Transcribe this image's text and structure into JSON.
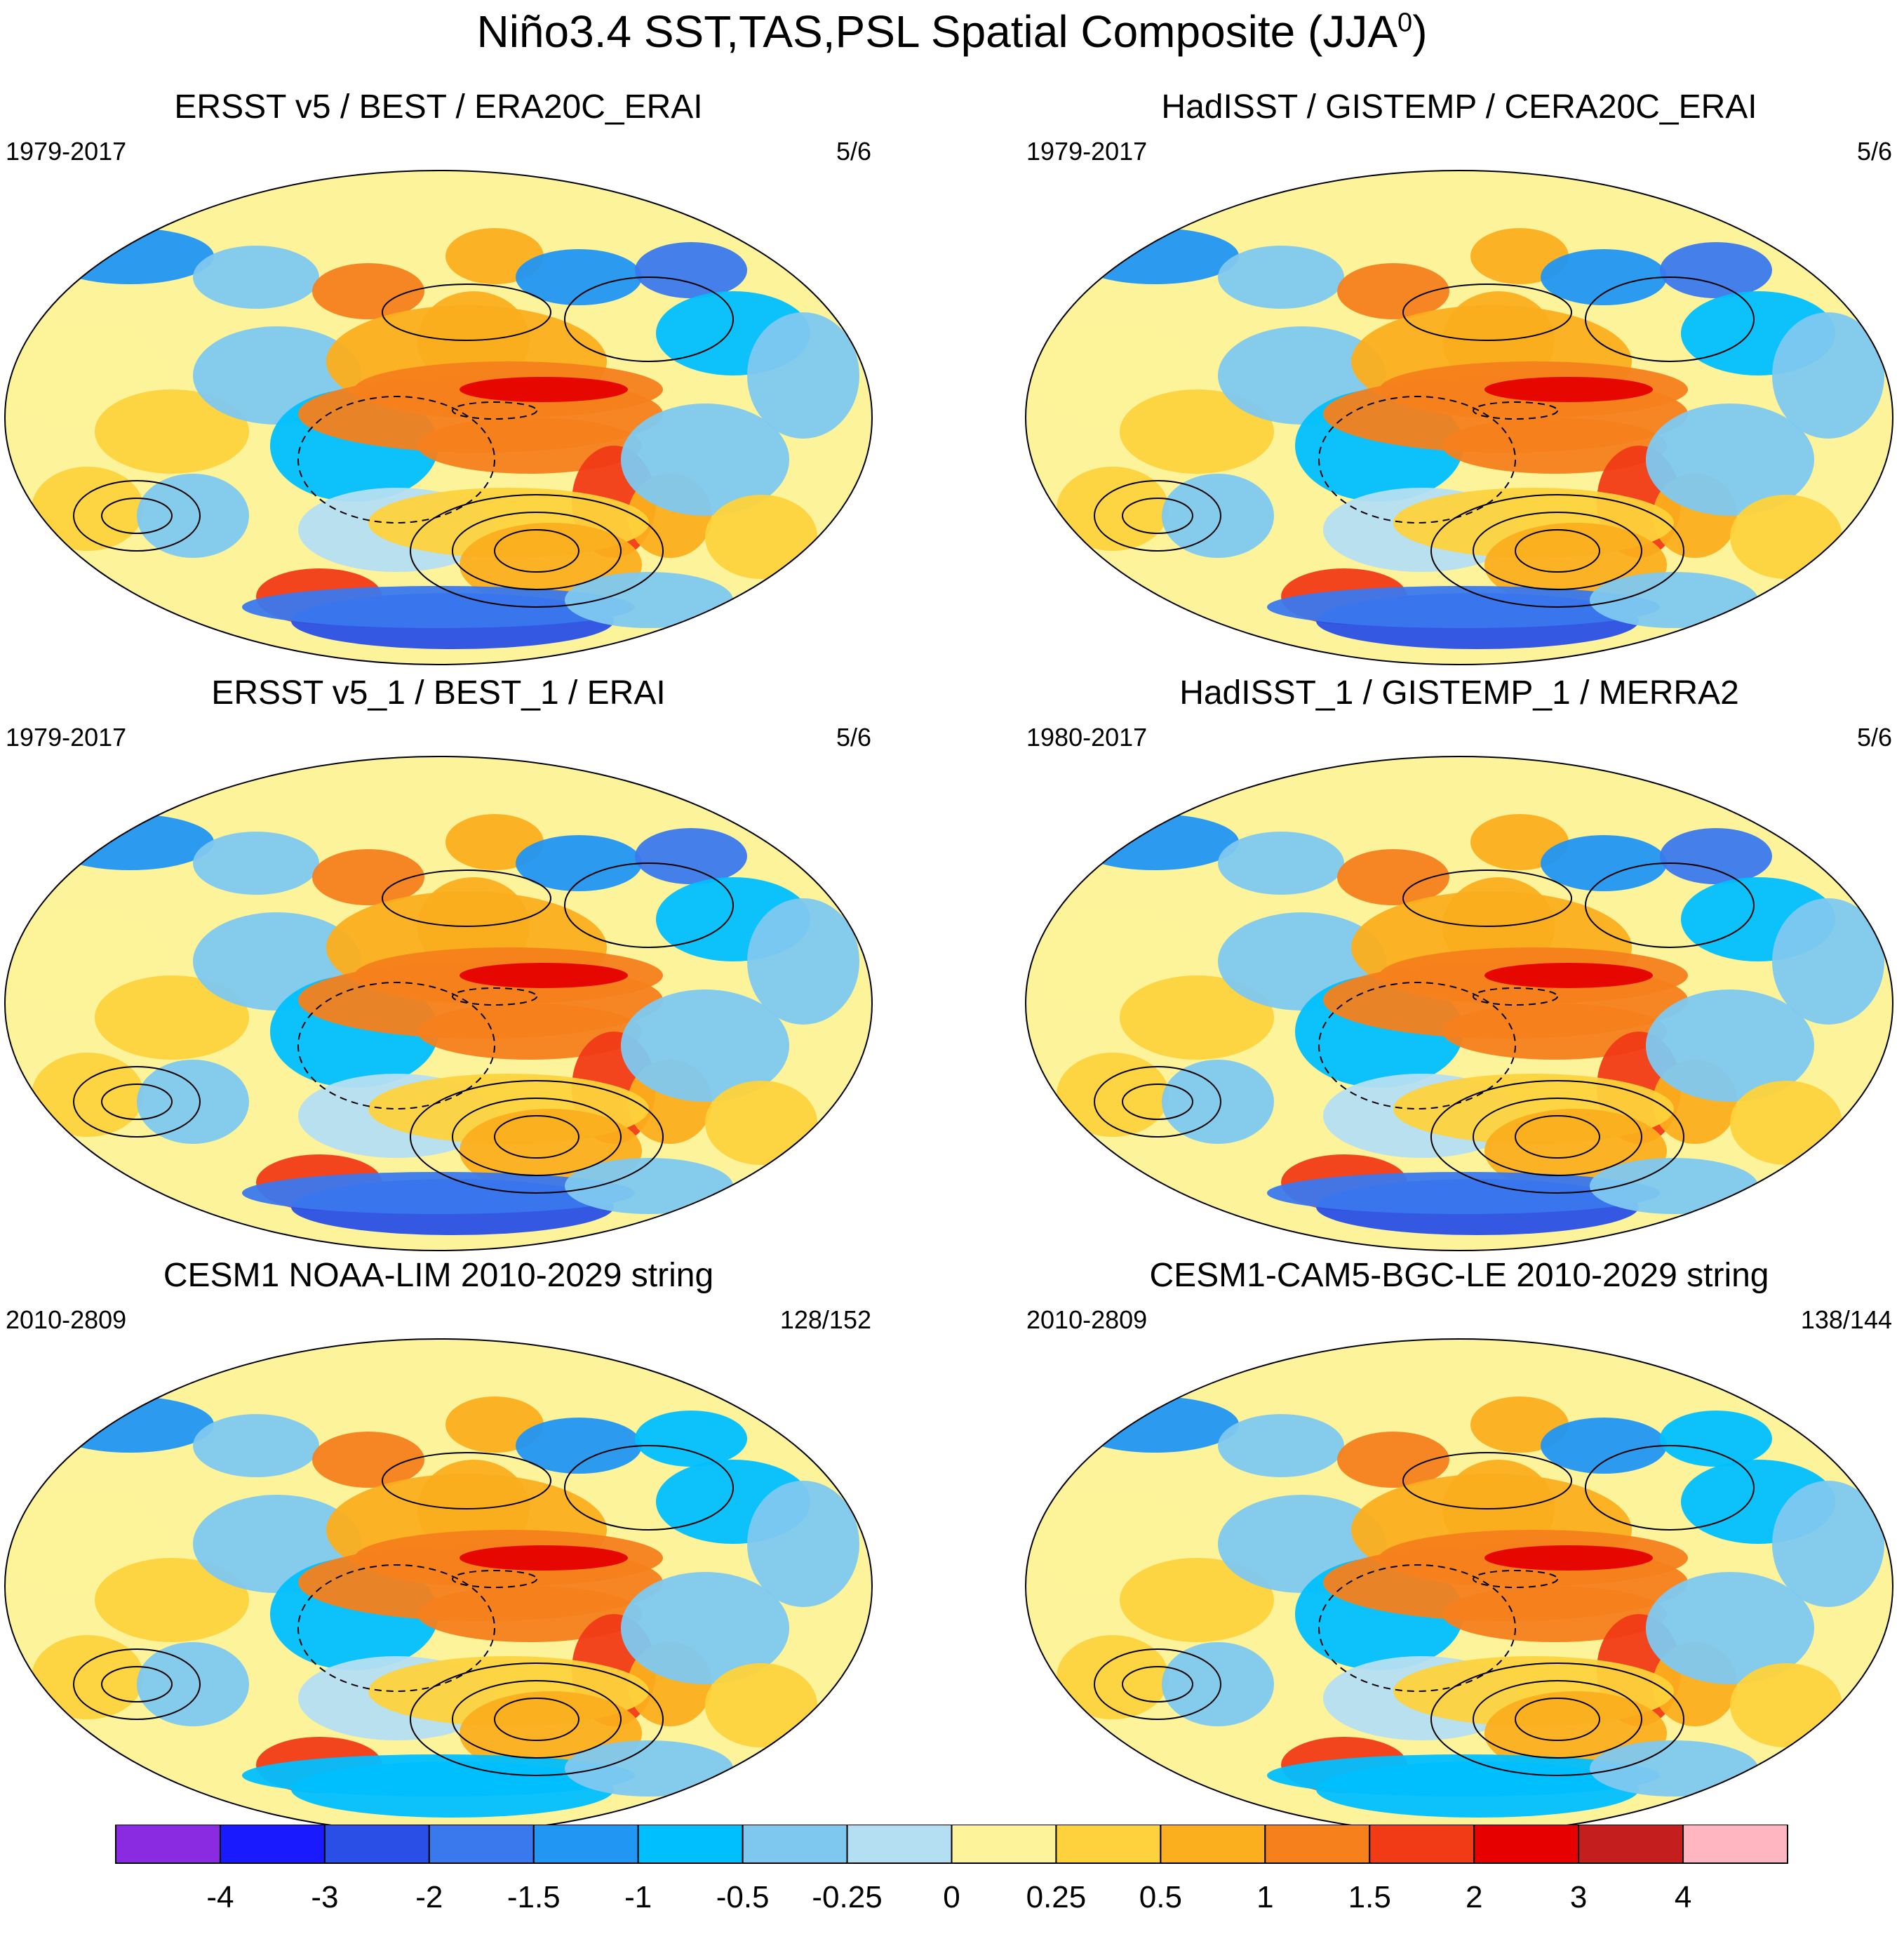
{
  "title": "Niño3.4 SST,TAS,PSL Spatial Composite (JJA",
  "title_superscript": "0",
  "title_close": ")",
  "panels": [
    {
      "title": "ERSST v5 / BEST / ERA20C_ERAI",
      "years": "1979-2017",
      "count": "5/6"
    },
    {
      "title": "HadISST / GISTEMP / CERA20C_ERAI",
      "years": "1979-2017",
      "count": "5/6"
    },
    {
      "title": "ERSST v5_1 / BEST_1 / ERAI",
      "years": "1979-2017",
      "count": "5/6"
    },
    {
      "title": "HadISST_1 / GISTEMP_1 / MERRA2",
      "years": "1980-2017",
      "count": "5/6"
    },
    {
      "title": "CESM1 NOAA-LIM 2010-2029 string",
      "years": "2010-2809",
      "count": "128/152"
    },
    {
      "title": "CESM1-CAM5-BGC-LE 2010-2029 string",
      "years": "2010-2809",
      "count": "138/144"
    }
  ],
  "colorbar": {
    "colors": [
      "#8a2be2",
      "#1a1aff",
      "#2a4fe6",
      "#3a78ee",
      "#2196f3",
      "#00bfff",
      "#7ec8f0",
      "#b4def2",
      "#fdf39a",
      "#fdd23c",
      "#fbae1e",
      "#f6801c",
      "#f13a16",
      "#e60000",
      "#c41e1e",
      "#ffb6c1"
    ],
    "labels": [
      "-4",
      "-3",
      "-2",
      "-1.5",
      "-1",
      "-0.5",
      "-0.25",
      "0",
      "0.25",
      "0.5",
      "1",
      "1.5",
      "2",
      "3",
      "4"
    ]
  }
}
